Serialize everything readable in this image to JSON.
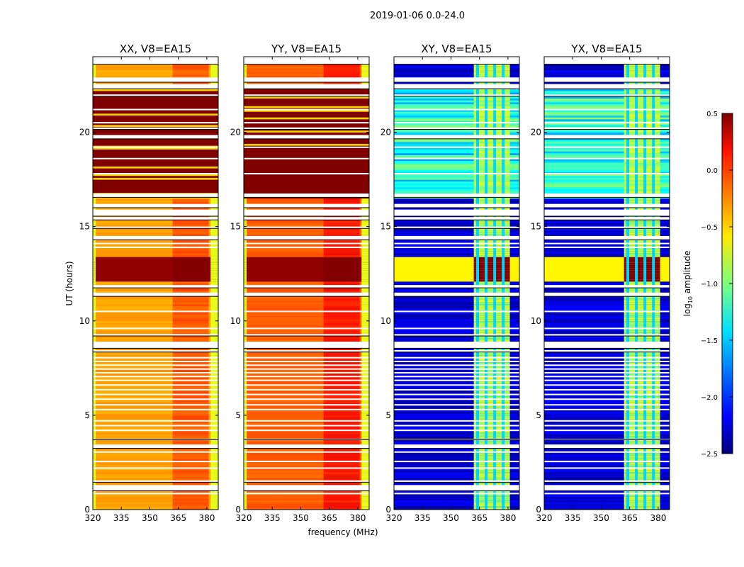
{
  "chart_data": {
    "type": "heatmap",
    "title": "2019-01-06 0.0-24.0",
    "xlabel": "frequency (MHz)",
    "ylabel": "UT (hours)",
    "xlim": [
      320,
      386
    ],
    "ylim": [
      0,
      24
    ],
    "xticks": [
      320,
      335,
      350,
      365,
      380
    ],
    "yticks": [
      0,
      5,
      10,
      15,
      20
    ],
    "colorbar": {
      "label": "log10 amplitude",
      "label_main": "log",
      "label_sub": "10",
      "label_tail": " amplitude",
      "range": [
        -2.5,
        0.5
      ],
      "ticks": [
        "0.5",
        "0.0",
        "−0.5",
        "−1.0",
        "−1.5",
        "−2.0",
        "−2.5"
      ],
      "tick_values": [
        0.5,
        0.0,
        -0.5,
        -1.0,
        -1.5,
        -2.0,
        -2.5
      ],
      "colormap": "jet"
    },
    "panels": [
      {
        "title": "XX, V8=EA15",
        "kind": "parallel",
        "base_value": -0.35,
        "edge_value": -0.7
      },
      {
        "title": "YY, V8=EA15",
        "kind": "parallel",
        "base_value": -0.15,
        "edge_value": -0.7
      },
      {
        "title": "XY, V8=EA15",
        "kind": "cross",
        "base_value": -2.4,
        "edge_value": -2.4
      },
      {
        "title": "YX, V8=EA15",
        "kind": "cross",
        "base_value": -2.4,
        "edge_value": -2.4
      }
    ],
    "rfi_time_band_hours": [
      16.4,
      22.3
    ],
    "rfi_freq_range_MHz": [
      362,
      381
    ],
    "rfi_stripes_MHz": [
      364,
      368.5,
      373,
      377.5
    ],
    "strong_rfi_hours": [
      12.0,
      13.3
    ],
    "data_end_hours": 23.6,
    "flag_gaps_hours": [
      [
        1.0,
        1.3
      ],
      [
        1.45,
        1.55
      ],
      [
        3.25,
        3.45
      ],
      [
        3.7,
        3.75
      ],
      [
        8.35,
        8.45
      ],
      [
        8.55,
        8.9
      ],
      [
        9.2,
        9.3
      ],
      [
        11.3,
        11.5
      ],
      [
        11.75,
        11.9
      ],
      [
        14.3,
        14.5
      ],
      [
        14.9,
        15.0
      ],
      [
        15.35,
        15.5
      ],
      [
        15.55,
        15.9
      ],
      [
        16.0,
        16.2
      ],
      [
        16.55,
        16.75
      ],
      [
        19.65,
        19.85
      ],
      [
        20.15,
        20.25
      ],
      [
        21.9,
        22.0
      ],
      [
        22.3,
        22.55
      ],
      [
        22.65,
        22.9
      ],
      [
        23.6,
        24.0
      ]
    ],
    "thin_gaps_hours": [
      4.2,
      4.45,
      4.7,
      5.3,
      5.55,
      5.85,
      6.1,
      6.35,
      6.6,
      6.85,
      7.05,
      7.25,
      7.45,
      7.65,
      7.85,
      8.05,
      2.2,
      2.55,
      3.05,
      0.85,
      9.6,
      10.5,
      13.9,
      14.1,
      17.8,
      18.6,
      19.2,
      20.5,
      21.2
    ]
  }
}
